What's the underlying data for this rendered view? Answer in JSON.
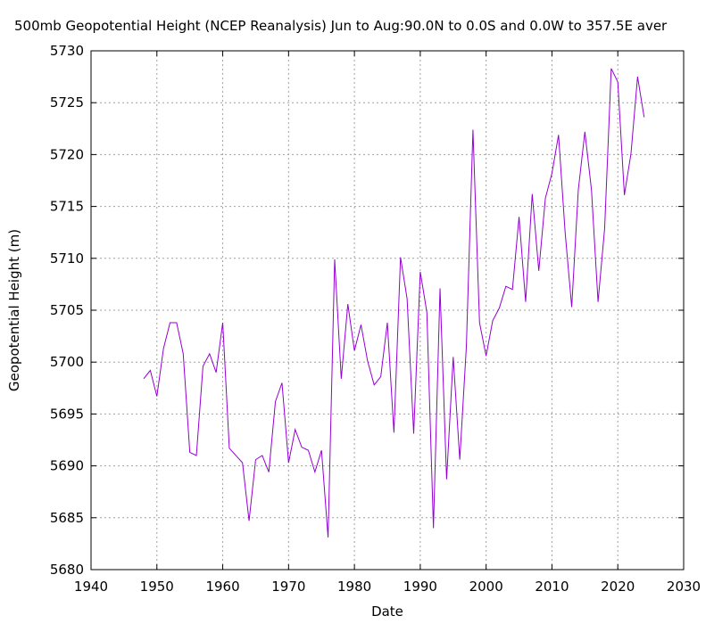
{
  "chart_data": {
    "type": "line",
    "title": "500mb Geopotential Height (NCEP Reanalysis) Jun to Aug:90.0N to 0.0S and 0.0W to 357.5E aver",
    "xlabel": "Date",
    "ylabel": "Geopotential Height (m)",
    "xlim": [
      1940,
      2030
    ],
    "ylim": [
      5680,
      5730
    ],
    "xticks": [
      1940,
      1950,
      1960,
      1970,
      1980,
      1990,
      2000,
      2010,
      2020,
      2030
    ],
    "yticks": [
      5680,
      5685,
      5690,
      5695,
      5700,
      5705,
      5710,
      5715,
      5720,
      5725,
      5730
    ],
    "grid": true,
    "legend": "none",
    "series": [
      {
        "color": "#9400d3",
        "x": [
          1948,
          1949,
          1950,
          1951,
          1952,
          1953,
          1954,
          1955,
          1956,
          1957,
          1958,
          1959,
          1960,
          1961,
          1962,
          1963,
          1964,
          1965,
          1966,
          1967,
          1968,
          1969,
          1970,
          1971,
          1972,
          1973,
          1974,
          1975,
          1976,
          1977,
          1978,
          1979,
          1980,
          1981,
          1982,
          1983,
          1984,
          1985,
          1986,
          1987,
          1988,
          1989,
          1990,
          1991,
          1992,
          1993,
          1994,
          1995,
          1996,
          1997,
          1998,
          1999,
          2000,
          2001,
          2002,
          2003,
          2004,
          2005,
          2006,
          2007,
          2008,
          2009,
          2010,
          2011,
          2012,
          2013,
          2014,
          2015,
          2016,
          2017,
          2018,
          2019,
          2020,
          2021,
          2022,
          2023,
          2024
        ],
        "values": [
          5698.4,
          5699.2,
          5696.7,
          5701.3,
          5703.8,
          5703.8,
          5700.8,
          5691.3,
          5691.0,
          5699.6,
          5700.8,
          5699.0,
          5703.8,
          5691.7,
          5691.0,
          5690.3,
          5684.7,
          5690.6,
          5691.0,
          5689.4,
          5696.2,
          5698.0,
          5690.3,
          5693.5,
          5691.8,
          5691.5,
          5689.4,
          5691.5,
          5683.1,
          5709.9,
          5698.4,
          5705.6,
          5701.1,
          5703.6,
          5700.1,
          5697.8,
          5698.6,
          5703.8,
          5693.2,
          5710.1,
          5706.1,
          5693.1,
          5708.7,
          5704.8,
          5684.0,
          5707.1,
          5688.7,
          5700.5,
          5690.6,
          5701.5,
          5722.4,
          5703.8,
          5700.6,
          5704.0,
          5705.2,
          5707.3,
          5707.0,
          5714.0,
          5705.8,
          5716.2,
          5708.8,
          5715.8,
          5718.2,
          5721.9,
          5712.5,
          5705.3,
          5716.6,
          5722.2,
          5716.6,
          5705.8,
          5712.9,
          5728.3,
          5727.0,
          5716.1,
          5720.1,
          5727.5,
          5723.6
        ]
      }
    ]
  }
}
